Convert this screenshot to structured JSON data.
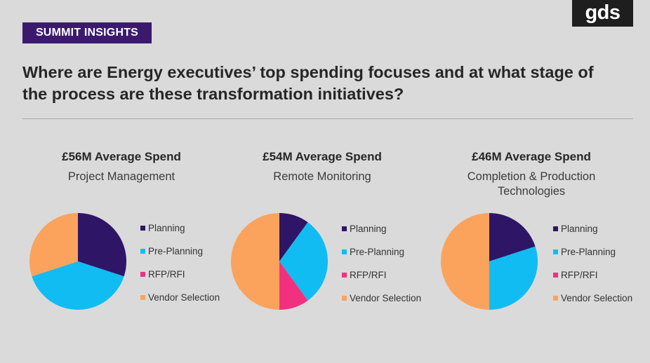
{
  "badge": "SUMMIT INSIGHTS",
  "logo": "gds",
  "headline": "Where are Energy executives’ top spending focuses and at what stage of the process are these transformation initiatives?",
  "legend_labels": [
    "Planning",
    "Pre-Planning",
    "RFP/RFI",
    "Vendor Selection"
  ],
  "colors": {
    "planning": "#2e1566",
    "pre_planning": "#11bcf2",
    "rfp_rfi": "#f2307f",
    "vendor_selection": "#fba35c",
    "badge_bg": "#3b1a6e",
    "background": "#dadada"
  },
  "chart_data": [
    {
      "type": "pie",
      "title": "£56M Average Spend",
      "subtitle": "Project Management",
      "categories": [
        "Planning",
        "Pre-Planning",
        "RFP/RFI",
        "Vendor Selection"
      ],
      "values": [
        30,
        40,
        0,
        30
      ],
      "legend": "right"
    },
    {
      "type": "pie",
      "title": "£54M Average Spend",
      "subtitle": "Remote Monitoring",
      "categories": [
        "Planning",
        "Pre-Planning",
        "RFP/RFI",
        "Vendor Selection"
      ],
      "values": [
        10,
        30,
        10,
        50
      ],
      "legend": "right"
    },
    {
      "type": "pie",
      "title": "£46M Average Spend",
      "subtitle": "Completion & Production Technologies",
      "categories": [
        "Planning",
        "Pre-Planning",
        "RFP/RFI",
        "Vendor Selection"
      ],
      "values": [
        20,
        30,
        0,
        50
      ],
      "legend": "right"
    }
  ]
}
